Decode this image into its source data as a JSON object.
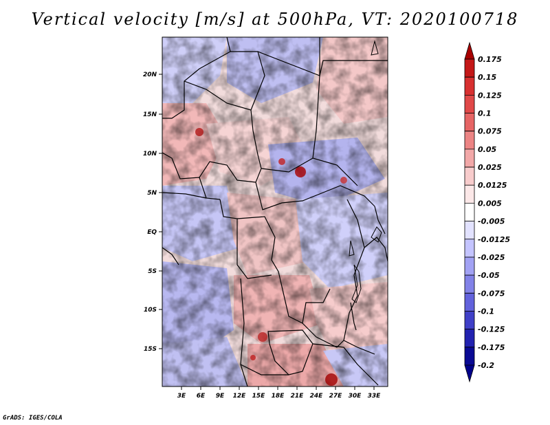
{
  "title": "Vertical velocity [m/s] at 500hPa, VT: 2020100718",
  "credit": "GrADS: IGES/COLA",
  "map": {
    "lat_ticks": [
      "20N",
      "15N",
      "10N",
      "5N",
      "EQ",
      "5S",
      "10S",
      "15S"
    ],
    "lon_ticks": [
      "3E",
      "6E",
      "9E",
      "12E",
      "15E",
      "18E",
      "21E",
      "24E",
      "27E",
      "30E",
      "33E"
    ]
  },
  "colorbar": {
    "labels": [
      "0.175",
      "0.15",
      "0.125",
      "0.1",
      "0.075",
      "0.05",
      "0.025",
      "0.0125",
      "0.005",
      "-0.005",
      "-0.0125",
      "-0.025",
      "-0.05",
      "-0.075",
      "-0.1",
      "-0.125",
      "-0.175",
      "-0.2"
    ],
    "colors": [
      "#a80000",
      "#c41818",
      "#d83030",
      "#e04848",
      "#e66464",
      "#ec8484",
      "#f2a8a8",
      "#f8cccc",
      "#fce8e8",
      "#ffffff",
      "#e2e2ff",
      "#c4c4ff",
      "#a2a2f4",
      "#8282e8",
      "#6262dc",
      "#4040c8",
      "#2222b0",
      "#0a0a94",
      "#00008a"
    ]
  }
}
